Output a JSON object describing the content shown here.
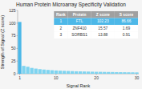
{
  "chart_data": {
    "type": "bar",
    "title": "Human Protein Microarray Specificity Validation",
    "x_label": "Signal Rank",
    "y_label": "Strength of Signal (Z score)",
    "x": [
      1,
      2,
      3,
      4,
      5,
      6,
      7,
      8,
      9,
      10,
      11,
      12,
      13,
      14,
      15,
      16,
      17,
      18,
      19,
      20,
      21,
      22,
      23,
      24,
      25,
      26,
      27,
      28,
      29,
      30
    ],
    "values": [
      102.23,
      15.57,
      13.88,
      11.5,
      10.2,
      9.1,
      8.3,
      7.6,
      7.0,
      6.5,
      6.1,
      5.8,
      5.5,
      5.2,
      4.9,
      4.7,
      4.5,
      4.3,
      4.1,
      3.9,
      3.8,
      3.6,
      3.5,
      3.4,
      3.2,
      3.1,
      3.0,
      2.9,
      2.8,
      2.7
    ],
    "colors": [
      "#4db8e8",
      "#7fd4f0",
      "#7fd4f0",
      "#7fd4f0",
      "#7fd4f0",
      "#7fd4f0",
      "#7fd4f0",
      "#7fd4f0",
      "#7fd4f0",
      "#7fd4f0",
      "#7fd4f0",
      "#7fd4f0",
      "#7fd4f0",
      "#7fd4f0",
      "#7fd4f0",
      "#7fd4f0",
      "#7fd4f0",
      "#7fd4f0",
      "#7fd4f0",
      "#7fd4f0",
      "#7fd4f0",
      "#7fd4f0",
      "#7fd4f0",
      "#7fd4f0",
      "#7fd4f0",
      "#7fd4f0",
      "#7fd4f0",
      "#7fd4f0",
      "#7fd4f0",
      "#7fd4f0"
    ],
    "xlim": [
      0.5,
      30.5
    ],
    "xticks": [
      1,
      10,
      20,
      30
    ],
    "ylim": [
      0,
      125
    ],
    "yticks": [
      0,
      25,
      50,
      75,
      100,
      125
    ],
    "grid": false,
    "table": {
      "headers": [
        "Rank",
        "Protein",
        "Z score",
        "S score"
      ],
      "rows": [
        [
          "1",
          "FTL",
          "102.23",
          "86.66"
        ],
        [
          "2",
          "ZNF410",
          "15.57",
          "1.69"
        ],
        [
          "3",
          "SORBS1",
          "13.88",
          "0.91"
        ]
      ],
      "header_color": "#a0a0a0",
      "highlight_color": "#4db8e8",
      "color": "#ffffff"
    }
  }
}
